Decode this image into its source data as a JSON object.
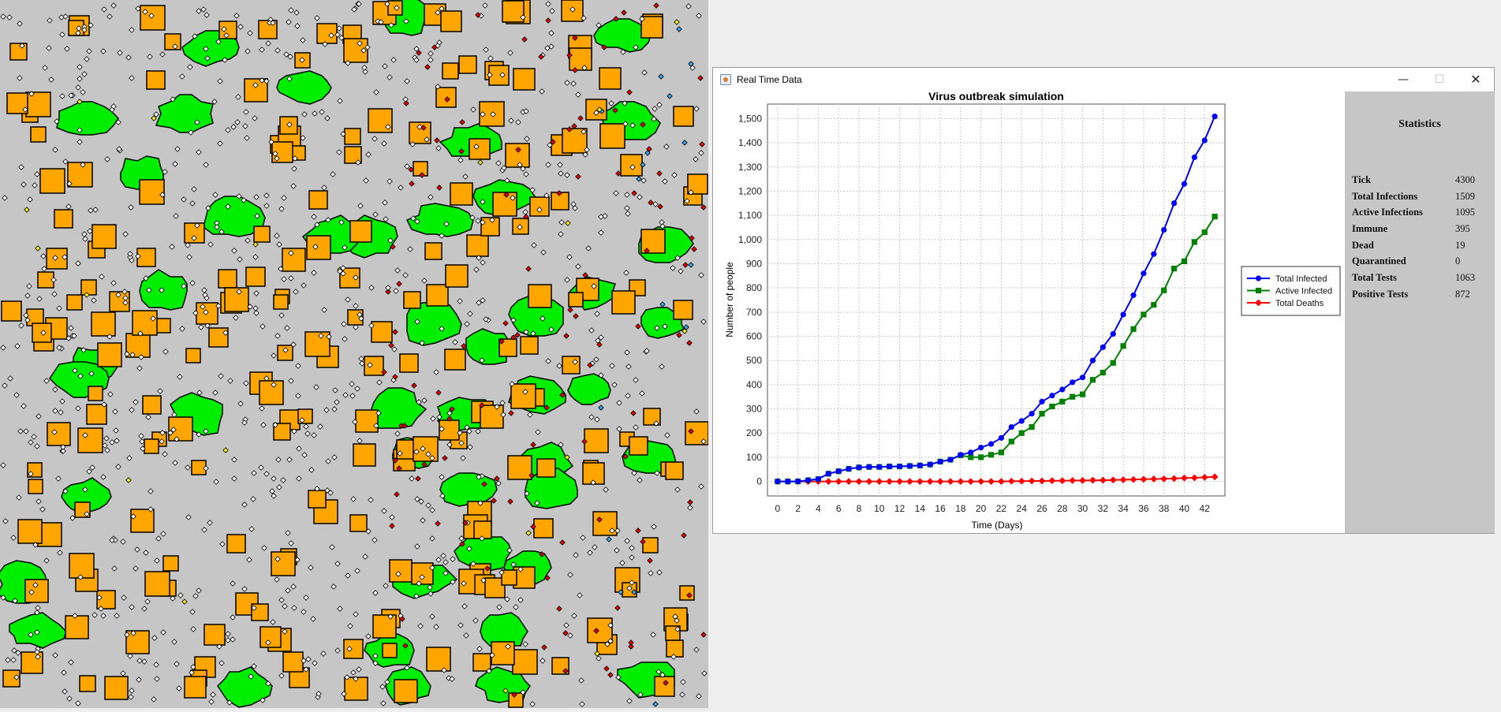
{
  "simulation": {
    "background_color": "#c6c6c6",
    "colors": {
      "building": "#ffa500",
      "park": "#00ee00",
      "healthy_person": "#ffffff",
      "infected_person": "#e00000",
      "tested_person": "#3aa0e8",
      "immune_person": "#f0f020"
    }
  },
  "window": {
    "title": "Real Time Data",
    "minimize_icon": "minimize-icon",
    "maximize_icon": "maximize-icon",
    "close_icon": "close-icon"
  },
  "stats": {
    "title": "Statistics",
    "rows": [
      {
        "label": "Tick",
        "value": "4300"
      },
      {
        "label": "Total Infections",
        "value": "1509"
      },
      {
        "label": "Active Infections",
        "value": "1095"
      },
      {
        "label": "Immune",
        "value": "395"
      },
      {
        "label": "Dead",
        "value": "19"
      },
      {
        "label": "Quarantined",
        "value": "0"
      },
      {
        "label": "Total Tests",
        "value": "1063"
      },
      {
        "label": "Positive Tests",
        "value": "872"
      }
    ]
  },
  "chart_data": {
    "type": "line",
    "title": "Virus outbreak simulation",
    "xlabel": "Time (Days)",
    "ylabel": "Number of people",
    "xlim": [
      -1,
      44
    ],
    "ylim": [
      -60,
      1560
    ],
    "x_ticks": [
      "0",
      "2",
      "4",
      "6",
      "8",
      "10",
      "12",
      "14",
      "16",
      "18",
      "20",
      "22",
      "24",
      "26",
      "28",
      "30",
      "32",
      "34",
      "36",
      "38",
      "40",
      "42"
    ],
    "y_ticks": [
      "0",
      "100",
      "200",
      "300",
      "400",
      "500",
      "600",
      "700",
      "800",
      "900",
      "1,000",
      "1,100",
      "1,200",
      "1,300",
      "1,400",
      "1,500"
    ],
    "grid": true,
    "legend_position": "right",
    "series": [
      {
        "name": "Total Infected",
        "color": "#0000ff",
        "marker": "circle",
        "x": [
          0,
          1,
          2,
          3,
          4,
          5,
          6,
          7,
          8,
          9,
          10,
          11,
          12,
          13,
          14,
          15,
          16,
          17,
          18,
          19,
          20,
          21,
          22,
          23,
          24,
          25,
          26,
          27,
          28,
          29,
          30,
          31,
          32,
          33,
          34,
          35,
          36,
          37,
          38,
          39,
          40,
          41,
          42,
          43
        ],
        "values": [
          0,
          0,
          0,
          5,
          10,
          32,
          42,
          52,
          58,
          60,
          60,
          62,
          62,
          64,
          66,
          70,
          82,
          90,
          110,
          120,
          140,
          155,
          180,
          225,
          250,
          280,
          330,
          355,
          380,
          410,
          430,
          500,
          555,
          610,
          690,
          770,
          860,
          940,
          1040,
          1150,
          1230,
          1340,
          1410,
          1509
        ]
      },
      {
        "name": "Active Infected",
        "color": "#008000",
        "marker": "square",
        "x": [
          0,
          1,
          2,
          3,
          4,
          5,
          6,
          7,
          8,
          9,
          10,
          11,
          12,
          13,
          14,
          15,
          16,
          17,
          18,
          19,
          20,
          21,
          22,
          23,
          24,
          25,
          26,
          27,
          28,
          29,
          30,
          31,
          32,
          33,
          34,
          35,
          36,
          37,
          38,
          39,
          40,
          41,
          42,
          43
        ],
        "values": [
          0,
          0,
          0,
          5,
          10,
          32,
          42,
          52,
          58,
          60,
          60,
          62,
          62,
          64,
          66,
          70,
          82,
          90,
          108,
          100,
          100,
          110,
          120,
          165,
          200,
          225,
          280,
          310,
          330,
          350,
          360,
          420,
          450,
          490,
          560,
          630,
          690,
          730,
          790,
          880,
          910,
          990,
          1030,
          1095
        ]
      },
      {
        "name": "Total Deaths",
        "color": "#ff0000",
        "marker": "diamond",
        "x": [
          0,
          1,
          2,
          3,
          4,
          5,
          6,
          7,
          8,
          9,
          10,
          11,
          12,
          13,
          14,
          15,
          16,
          17,
          18,
          19,
          20,
          21,
          22,
          23,
          24,
          25,
          26,
          27,
          28,
          29,
          30,
          31,
          32,
          33,
          34,
          35,
          36,
          37,
          38,
          39,
          40,
          41,
          42,
          43
        ],
        "values": [
          0,
          0,
          0,
          0,
          0,
          0,
          0,
          0,
          0,
          0,
          0,
          0,
          0,
          0,
          0,
          0,
          0,
          0,
          0,
          0,
          0,
          0,
          0,
          1,
          1,
          2,
          2,
          3,
          3,
          4,
          4,
          5,
          5,
          6,
          7,
          8,
          9,
          10,
          11,
          12,
          14,
          15,
          17,
          19
        ]
      }
    ]
  }
}
